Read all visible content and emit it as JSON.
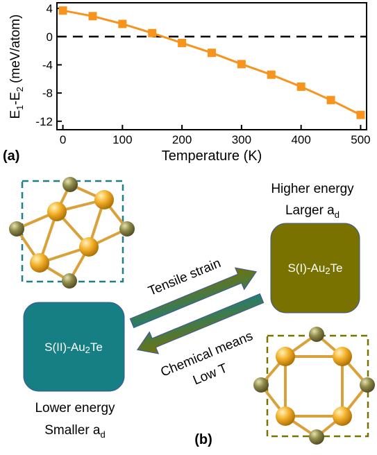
{
  "chart_data": {
    "type": "line",
    "xlabel": "Temperature (K)",
    "ylabel_main": "E",
    "ylabel_sub1": "1",
    "ylabel_mid": "-E",
    "ylabel_sub2": "2",
    "ylabel_unit": " (meV/atom)",
    "xlim": [
      -10,
      510
    ],
    "ylim": [
      -13.2,
      4.8
    ],
    "xticks": [
      0,
      100,
      200,
      300,
      400,
      500
    ],
    "yticks": [
      4,
      0,
      -4,
      -8,
      -12
    ],
    "reference_line_y": 0,
    "grid": false,
    "series": [
      {
        "color": "#f7941d",
        "marker": "square",
        "x": [
          0,
          50,
          100,
          150,
          200,
          250,
          300,
          350,
          400,
          450,
          500
        ],
        "y": [
          3.7,
          2.9,
          1.8,
          0.5,
          -0.9,
          -2.3,
          -3.9,
          -5.4,
          -7.1,
          -9.0,
          -11.1
        ]
      }
    ]
  },
  "panel_a_label": "(a)",
  "panel_b_label": "(b)",
  "phase_right": {
    "name_main": "S(I)-Au",
    "name_sub": "2",
    "name_end": "Te",
    "energy_label": "Higher energy",
    "lattice_main": "Larger a",
    "lattice_sub": "d",
    "box_color": "#7a7200"
  },
  "phase_left": {
    "name_main": "S(II)-Au",
    "name_sub": "2",
    "name_end": "Te",
    "energy_label": "Lower energy",
    "lattice_main": "Smaller a",
    "lattice_sub": "d",
    "box_color": "#157f84"
  },
  "arrow_up_label": "Tensile strain",
  "arrow_down_label_1": "Chemical means",
  "arrow_down_label_2": "Low T",
  "colors": {
    "gold_atom": "#f2a922",
    "te_atom": "#8f8a49",
    "bond": "#d9a13a",
    "teal_dashed": "#1f7f86",
    "olive_dashed": "#7a7200"
  }
}
